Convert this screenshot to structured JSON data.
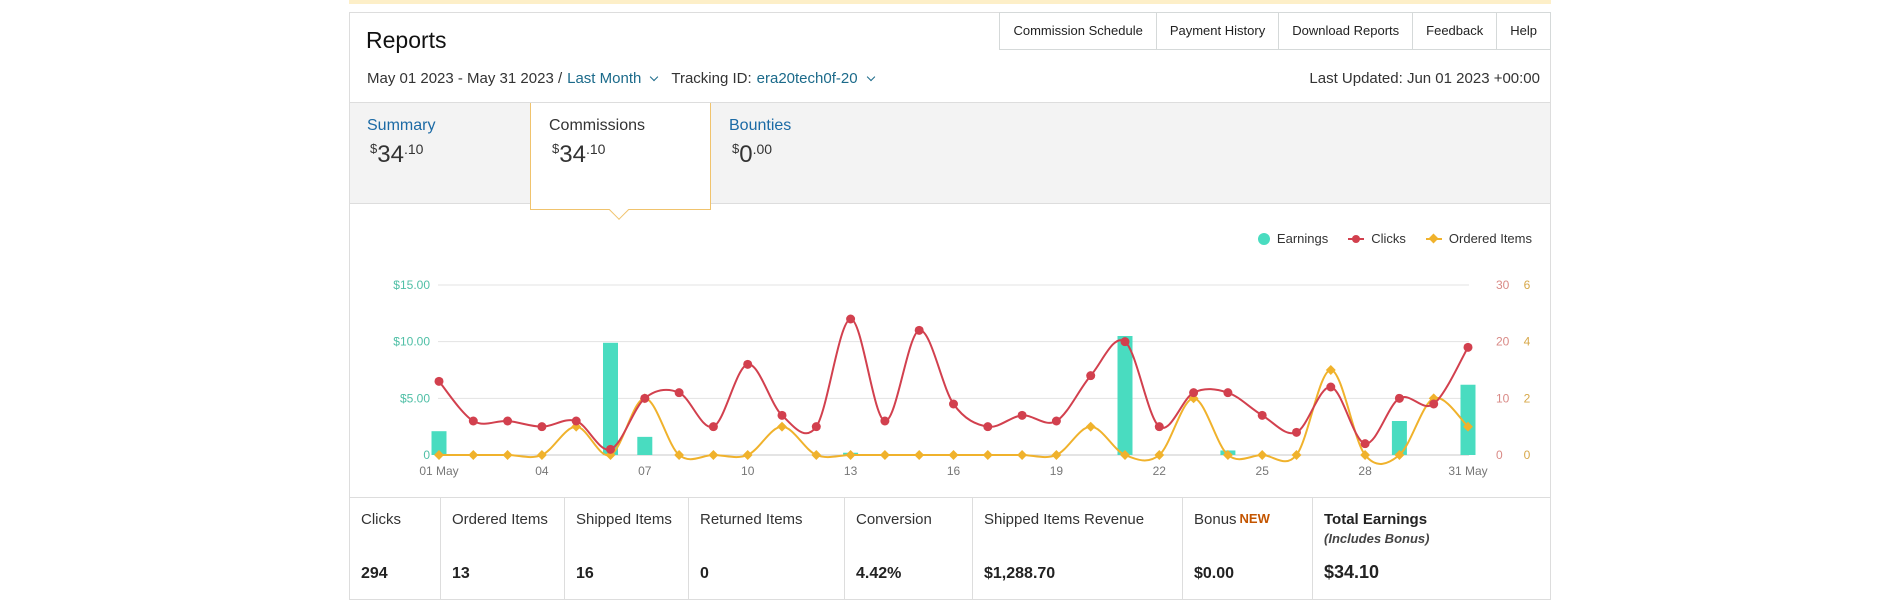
{
  "header": {
    "title": "Reports"
  },
  "nav": [
    "Commission Schedule",
    "Payment History",
    "Download Reports",
    "Feedback",
    "Help"
  ],
  "filters": {
    "date_range": "May 01 2023 - May 31 2023 /",
    "period": "Last Month",
    "tracking_label": "Tracking ID:",
    "tracking_id": "era20tech0f-20",
    "last_updated": "Last Updated: Jun 01 2023 +00:00"
  },
  "tabs": [
    {
      "label": "Summary",
      "currency": "$",
      "whole": "34",
      "fraction": ".10"
    },
    {
      "label": "Commissions",
      "currency": "$",
      "whole": "34",
      "fraction": ".10"
    },
    {
      "label": "Bounties",
      "currency": "$",
      "whole": "0",
      "fraction": ".00"
    }
  ],
  "colors": {
    "earnings": "#49dcc0",
    "clicks": "#d2404e",
    "ordered_items": "#f0b22c",
    "link": "#1b6aa5",
    "accent_border": "#f0c36d"
  },
  "chart_data": {
    "type": "bar",
    "legend": [
      "Earnings",
      "Clicks",
      "Ordered Items"
    ],
    "legend_position": "top-right",
    "grid": true,
    "x_tick_labels": [
      "01 May",
      "04",
      "07",
      "10",
      "13",
      "16",
      "19",
      "22",
      "25",
      "28",
      "31 May"
    ],
    "y_left": {
      "ticks": [
        "0",
        "$5.00",
        "$10.00",
        "$15.00"
      ],
      "range": [
        0,
        15
      ]
    },
    "y_right_clicks": {
      "ticks": [
        "0",
        "10",
        "20",
        "30"
      ],
      "range": [
        0,
        30
      ]
    },
    "y_right_items": {
      "ticks": [
        "0",
        "2",
        "4",
        "6"
      ],
      "range": [
        0,
        6
      ]
    },
    "days": [
      1,
      2,
      3,
      4,
      5,
      6,
      7,
      8,
      9,
      10,
      11,
      12,
      13,
      14,
      15,
      16,
      17,
      18,
      19,
      20,
      21,
      22,
      23,
      24,
      25,
      26,
      27,
      28,
      29,
      30,
      31
    ],
    "series": [
      {
        "name": "Earnings",
        "type": "bar",
        "values": [
          2.1,
          0,
          0,
          0,
          0,
          9.9,
          1.6,
          0,
          0,
          0,
          0,
          0,
          0.2,
          0,
          0,
          0,
          0,
          0,
          0,
          0,
          10.5,
          0,
          0,
          0.4,
          0,
          0,
          0,
          0,
          3.0,
          0,
          6.2
        ]
      },
      {
        "name": "Clicks",
        "type": "line",
        "values": [
          13,
          6,
          6,
          5,
          6,
          1,
          10,
          11,
          5,
          16,
          7,
          5,
          24,
          6,
          22,
          9,
          5,
          7,
          6,
          14,
          20,
          5,
          11,
          11,
          7,
          4,
          12,
          2,
          10,
          9,
          19
        ]
      },
      {
        "name": "Ordered Items",
        "type": "line",
        "values": [
          0,
          0,
          0,
          0,
          1,
          0,
          2,
          0,
          0,
          0,
          1,
          0,
          0,
          0,
          0,
          0,
          0,
          0,
          0,
          1,
          0,
          0,
          2,
          0,
          0,
          0,
          3,
          0,
          0,
          2,
          1
        ]
      }
    ]
  },
  "metrics": [
    {
      "label": "Clicks",
      "value": "294"
    },
    {
      "label": "Ordered Items",
      "value": "13"
    },
    {
      "label": "Shipped Items",
      "value": "16"
    },
    {
      "label": "Returned Items",
      "value": "0"
    },
    {
      "label": "Conversion",
      "value": "4.42%"
    },
    {
      "label": "Shipped Items Revenue",
      "value": "$1,288.70"
    },
    {
      "label": "Bonus",
      "badge": "NEW",
      "value": "$0.00"
    },
    {
      "label": "Total Earnings",
      "sub": "(Includes Bonus)",
      "value": "$34.10"
    }
  ]
}
